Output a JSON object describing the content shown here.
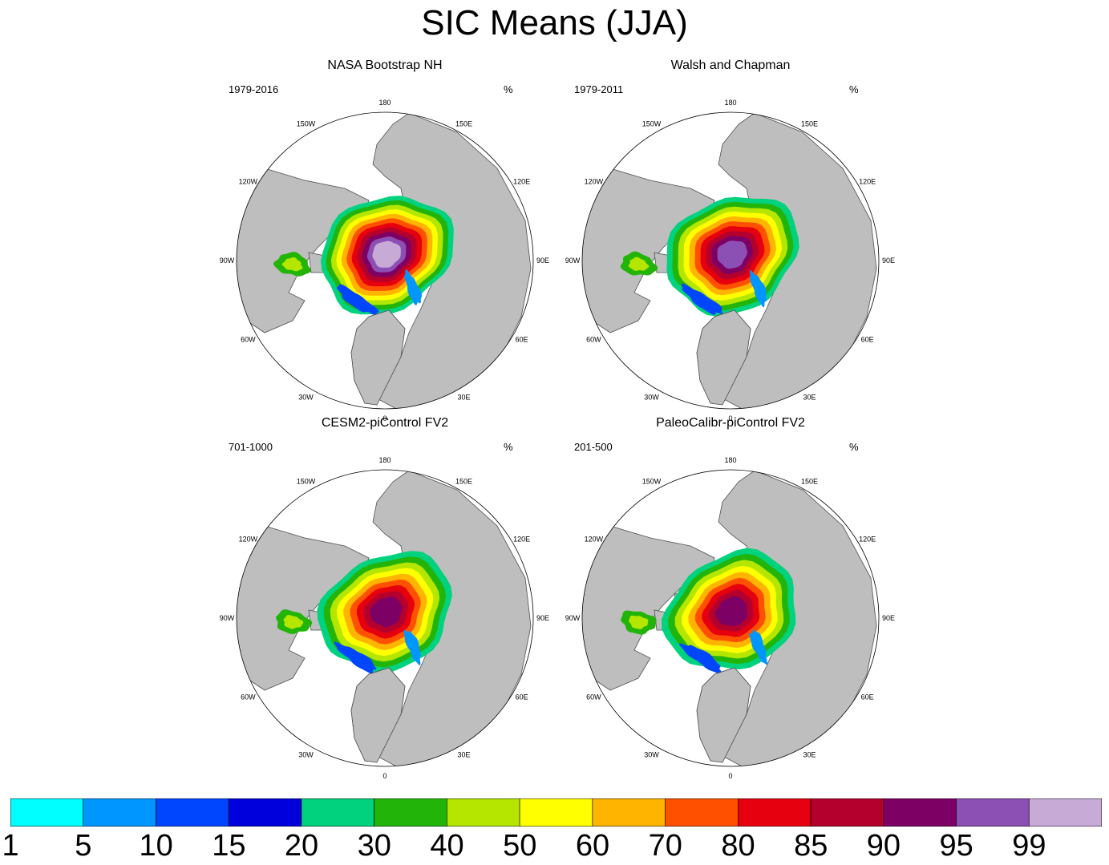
{
  "figure": {
    "title": "SIC Means (JJA)"
  },
  "lon_labels": [
    "180",
    "150E",
    "120E",
    "90E",
    "60E",
    "30E",
    "0",
    "30W",
    "60W",
    "90W",
    "120W",
    "150W"
  ],
  "chart_data": [
    {
      "type": "heatmap",
      "title": "NASA Bootstrap NH",
      "period": "1979-2016",
      "units": "%",
      "central_max_category": 99
    },
    {
      "type": "heatmap",
      "title": "Walsh and Chapman",
      "period": "1979-2011",
      "units": "%",
      "central_max_category": 95
    },
    {
      "type": "heatmap",
      "title": "CESM2-piControl FV2",
      "period": "701-1000",
      "units": "%",
      "central_max_category": 90
    },
    {
      "type": "heatmap",
      "title": "PaleoCalibr-piControl FV2",
      "period": "201-500",
      "units": "%",
      "central_max_category": 90
    }
  ],
  "colorbar": {
    "levels": [
      "1",
      "5",
      "10",
      "15",
      "20",
      "30",
      "40",
      "50",
      "60",
      "70",
      "80",
      "85",
      "90",
      "95",
      "99"
    ],
    "colors": [
      "#00ffff",
      "#0096ff",
      "#0046ff",
      "#0000dc",
      "#00d27d",
      "#23b40a",
      "#b4e600",
      "#ffff00",
      "#ffb400",
      "#ff5000",
      "#e6000f",
      "#b4002d",
      "#7d0064",
      "#8c50b4",
      "#c8aad7"
    ]
  },
  "colors": {
    "land": "#bebebe",
    "ocean": "#ffffff",
    "coast": "#505050"
  }
}
